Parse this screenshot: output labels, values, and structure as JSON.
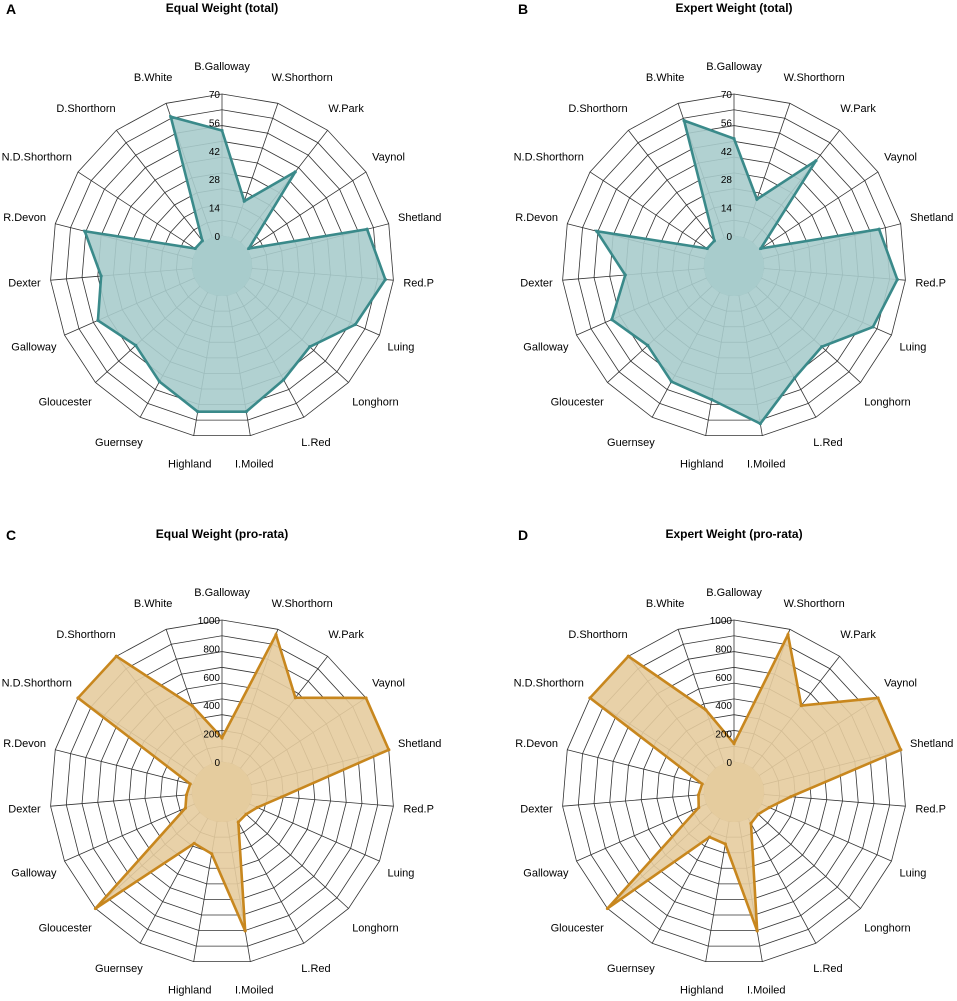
{
  "chart_data": [
    {
      "type": "radar",
      "panel_letter": "A",
      "title": "Equal Weight (total)",
      "categories": [
        "B.Galloway",
        "W.Shorthorn",
        "W.Park",
        "Vaynol",
        "Shetland",
        "Red.P",
        "Luing",
        "Longhorn",
        "L.Red",
        "I.Moiled",
        "Highland",
        "Guernsey",
        "Gloucester",
        "Galloway",
        "Dexter",
        "R.Devon",
        "N.D.Shorthorn",
        "D.Shorthorn",
        "B.White"
      ],
      "values": [
        52,
        19,
        44,
        1,
        59,
        66,
        57,
        44,
        49,
        58,
        58,
        50,
        43,
        52,
        45,
        55,
        1,
        1,
        63
      ],
      "r_ticks": [
        "0",
        "14",
        "28",
        "42",
        "56",
        "70"
      ],
      "rlim": [
        0,
        70
      ],
      "fill": "#a8cccc",
      "stroke": "#3a8a8a"
    },
    {
      "type": "radar",
      "panel_letter": "B",
      "title": "Expert Weight (total)",
      "categories": [
        "B.Galloway",
        "W.Shorthorn",
        "W.Park",
        "Vaynol",
        "Shetland",
        "Red.P",
        "Luing",
        "Longhorn",
        "L.Red",
        "I.Moiled",
        "Highland",
        "Guernsey",
        "Gloucester",
        "Galloway",
        "Dexter",
        "R.Devon",
        "N.D.Shorthorn",
        "D.Shorthorn",
        "B.White"
      ],
      "values": [
        48,
        20,
        51,
        1,
        59,
        66,
        60,
        44,
        48,
        64,
        52,
        50,
        43,
        51,
        39,
        55,
        1,
        1,
        61
      ],
      "r_ticks": [
        "0",
        "14",
        "28",
        "42",
        "56",
        "70"
      ],
      "rlim": [
        0,
        70
      ],
      "fill": "#a8cccc",
      "stroke": "#3a8a8a"
    },
    {
      "type": "radar",
      "panel_letter": "C",
      "title": "Equal Weight (pro-rata)",
      "categories": [
        "B.Galloway",
        "W.Shorthorn",
        "W.Park",
        "Vaynol",
        "Shetland",
        "Red.P",
        "Luing",
        "Longhorn",
        "L.Red",
        "I.Moiled",
        "Highland",
        "Guernsey",
        "Gloucester",
        "Galloway",
        "Dexter",
        "R.Devon",
        "N.D.Shorthorn",
        "D.Shorthorn",
        "B.White"
      ],
      "values": [
        170,
        960,
        630,
        1000,
        1000,
        210,
        60,
        20,
        30,
        780,
        230,
        200,
        1000,
        70,
        40,
        20,
        1000,
        1000,
        430
      ],
      "r_ticks": [
        "0",
        "200",
        "400",
        "600",
        "800",
        "1000"
      ],
      "rlim": [
        0,
        1000
      ],
      "fill": "#e5cc9e",
      "stroke": "#c8871e"
    },
    {
      "type": "radar",
      "panel_letter": "D",
      "title": "Expert Weight (pro-rata)",
      "categories": [
        "B.Galloway",
        "W.Shorthorn",
        "W.Park",
        "Vaynol",
        "Shetland",
        "Red.P",
        "Luing",
        "Longhorn",
        "L.Red",
        "I.Moiled",
        "Highland",
        "Guernsey",
        "Gloucester",
        "Galloway",
        "Dexter",
        "R.Devon",
        "N.D.Shorthorn",
        "D.Shorthorn",
        "B.White"
      ],
      "values": [
        130,
        960,
        560,
        1000,
        1000,
        190,
        60,
        20,
        40,
        780,
        160,
        150,
        1000,
        60,
        40,
        20,
        1000,
        1000,
        400
      ],
      "r_ticks": [
        "0",
        "200",
        "400",
        "600",
        "800",
        "1000"
      ],
      "rlim": [
        0,
        1000
      ],
      "fill": "#e5cc9e",
      "stroke": "#c8871e"
    }
  ]
}
